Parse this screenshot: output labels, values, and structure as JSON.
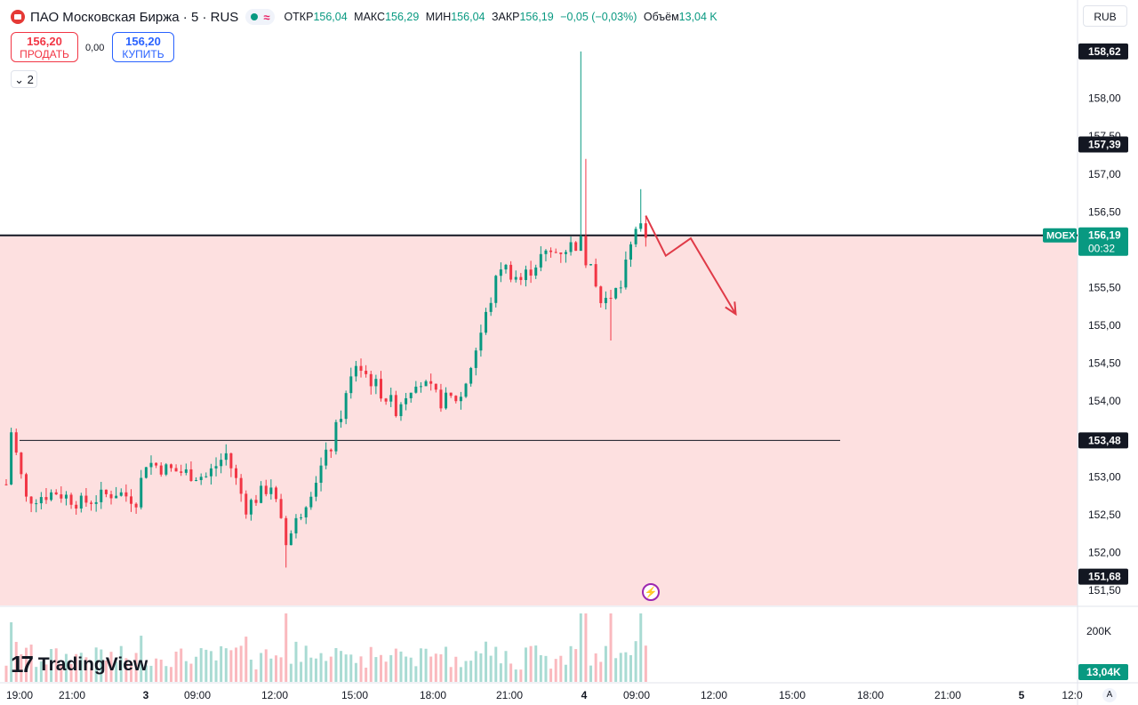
{
  "header": {
    "title": "ПАО Московская Биржа · 5 · RUS",
    "open_label": "ОТКР",
    "open_value": "156,04",
    "high_label": "МАКС",
    "high_value": "156,29",
    "low_label": "МИН",
    "low_value": "156,04",
    "close_label": "ЗАКР",
    "close_value": "156,19",
    "change": "−0,05 (−0,03%)",
    "volume_label": "Объём",
    "volume_value": "13,04 K"
  },
  "trade": {
    "sell_price": "156,20",
    "sell_label": "ПРОДАТЬ",
    "spread": "0,00",
    "buy_price": "156,20",
    "buy_label": "КУПИТЬ"
  },
  "indicators_toggle": "2",
  "currency": "RUB",
  "brand": "TradingView",
  "auto_button": "A",
  "colors": {
    "up": "#089981",
    "down": "#f23645",
    "zone": "#fde0e0",
    "arrow": "#e03a47"
  },
  "chart_data": {
    "type": "candlestick",
    "symbol": "MOEX",
    "last_price": "156,19",
    "countdown": "00:32",
    "y_ticks": [
      "158,00",
      "157,50",
      "157,00",
      "156,50",
      "155,50",
      "155,00",
      "154,50",
      "154,00",
      "153,00",
      "152,50",
      "152,00",
      "151,50"
    ],
    "y_tick_values": [
      158.0,
      157.5,
      157.0,
      156.5,
      155.5,
      155.0,
      154.5,
      154.0,
      153.0,
      152.5,
      152.0,
      151.5
    ],
    "ylim": [
      151.3,
      158.9
    ],
    "price_tags": [
      {
        "label": "158,62",
        "value": 158.62
      },
      {
        "label": "157,39",
        "value": 157.39
      },
      {
        "label": "153,48",
        "value": 153.48
      },
      {
        "label": "151,68",
        "value": 151.68
      }
    ],
    "x_ticks": [
      "19:00",
      "21:00",
      "3",
      "09:00",
      "12:00",
      "15:00",
      "18:00",
      "21:00",
      "4",
      "09:00",
      "12:00",
      "15:00",
      "18:00",
      "21:00",
      "5",
      "12:0"
    ],
    "horizontal_lines": [
      156.19,
      153.48
    ],
    "shaded_zone": [
      151.3,
      156.19
    ],
    "volume": {
      "tick_label": "200K",
      "tick_value": 200000,
      "last_label": "13,04K"
    },
    "keypoints": [
      {
        "t": 0,
        "p": 152.9
      },
      {
        "t": 1,
        "p": 153.6
      },
      {
        "t": 4,
        "p": 152.7
      },
      {
        "t": 10,
        "p": 152.8
      },
      {
        "t": 15,
        "p": 152.65
      },
      {
        "t": 22,
        "p": 152.8
      },
      {
        "t": 26,
        "p": 152.7
      },
      {
        "t": 28,
        "p": 153.2
      },
      {
        "t": 32,
        "p": 153.1
      },
      {
        "t": 40,
        "p": 153.0
      },
      {
        "t": 44,
        "p": 153.3
      },
      {
        "t": 48,
        "p": 152.6
      },
      {
        "t": 53,
        "p": 152.9
      },
      {
        "t": 56,
        "p": 152.1
      },
      {
        "t": 60,
        "p": 152.7
      },
      {
        "t": 65,
        "p": 153.4
      },
      {
        "t": 70,
        "p": 154.5
      },
      {
        "t": 74,
        "p": 154.2
      },
      {
        "t": 78,
        "p": 153.9
      },
      {
        "t": 82,
        "p": 154.3
      },
      {
        "t": 87,
        "p": 154.0
      },
      {
        "t": 91,
        "p": 154.05
      },
      {
        "t": 95,
        "p": 154.9
      },
      {
        "t": 99,
        "p": 155.8
      },
      {
        "t": 103,
        "p": 155.6
      },
      {
        "t": 107,
        "p": 155.9
      },
      {
        "t": 111,
        "p": 156.0
      },
      {
        "t": 115,
        "p": 156.1
      },
      {
        "t": 119,
        "p": 155.3
      },
      {
        "t": 123,
        "p": 155.5
      },
      {
        "t": 126,
        "p": 156.3
      },
      {
        "t": 128,
        "p": 156.2
      }
    ],
    "arrow_points": [
      [
        128,
        156.45
      ],
      [
        132,
        155.92
      ],
      [
        137,
        156.15
      ],
      [
        146,
        155.15
      ]
    ]
  }
}
